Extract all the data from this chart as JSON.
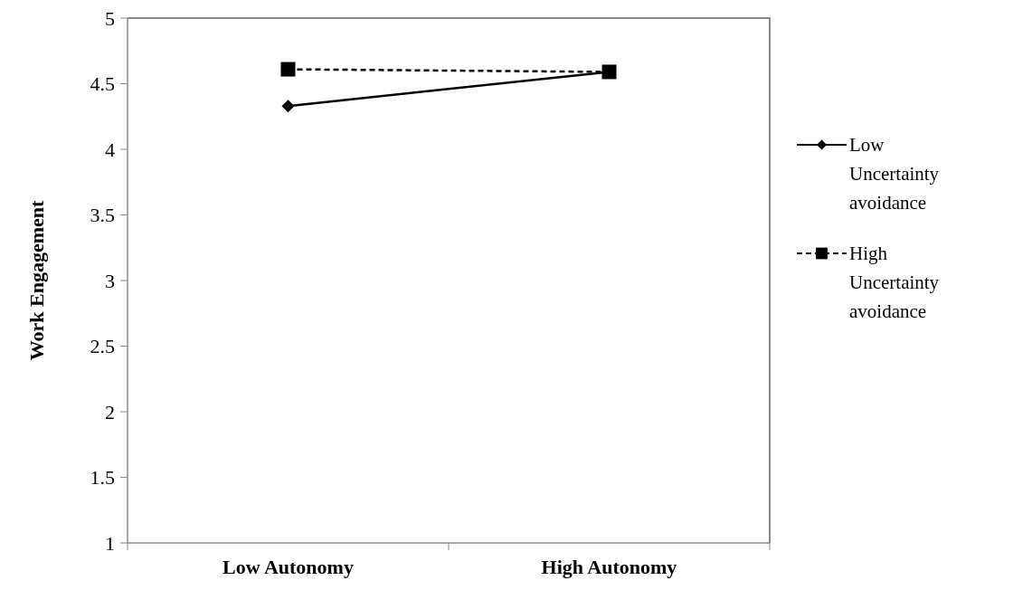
{
  "chart_data": {
    "type": "line",
    "ylabel": "Work Engagement",
    "categories": [
      "Low Autonomy",
      "High Autonomy"
    ],
    "series": [
      {
        "name": "Low Uncertainty avoidance",
        "color": "#000000",
        "values": [
          4.33,
          4.59
        ],
        "marker": "diamond",
        "line_style": "solid"
      },
      {
        "name": "High Uncertainty avoidance",
        "color": "#000000",
        "values": [
          4.61,
          4.59
        ],
        "marker": "square",
        "line_style": "dashed"
      }
    ],
    "ylim": [
      1,
      5
    ],
    "yticks": [
      1,
      1.5,
      2,
      2.5,
      3,
      3.5,
      4,
      4.5,
      5
    ],
    "grid": false,
    "legend": "right"
  }
}
